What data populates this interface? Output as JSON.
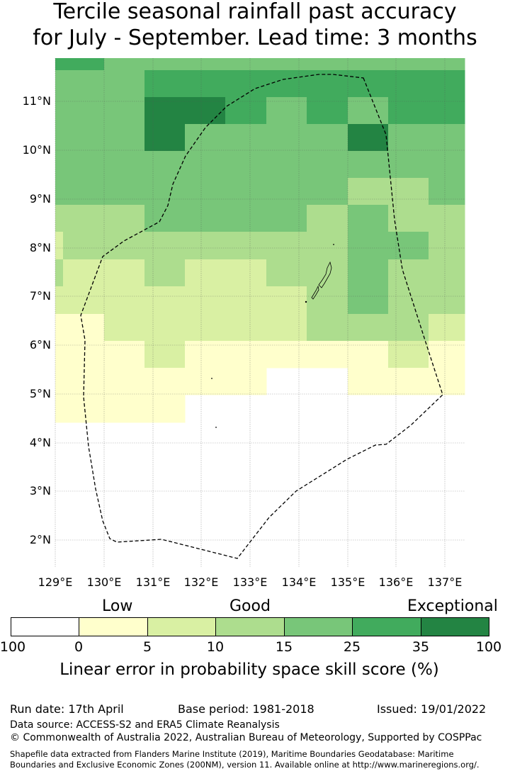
{
  "title_line1": "Tercile seasonal rainfall past accuracy",
  "title_line2": "for July - September. Lead time: 3 months",
  "lat_labels": [
    "11°N",
    "10°N",
    "9°N",
    "8°N",
    "7°N",
    "6°N",
    "5°N",
    "4°N",
    "3°N",
    "2°N"
  ],
  "lon_labels": [
    "129°E",
    "130°E",
    "131°E",
    "132°E",
    "133°E",
    "134°E",
    "135°E",
    "136°E",
    "137°E"
  ],
  "legend": {
    "category_labels": [
      "Low",
      "Good",
      "Exceptional"
    ],
    "tick_labels": [
      "100",
      "0",
      "5",
      "10",
      "15",
      "25",
      "35",
      "100"
    ],
    "colors": [
      "#ffffff",
      "#ffffcc",
      "#d9f0a3",
      "#addd8e",
      "#78c679",
      "#41ab5d",
      "#238443"
    ],
    "title": "Linear error in probability space skill score (%)"
  },
  "footer": {
    "run_date": "Run date: 17th April",
    "base_period": "Base period: 1981-2018",
    "issued": "Issued: 19/01/2022",
    "data_source": "Data source: ACCESS-S2 and ERA5 Climate Reanalysis",
    "copyright": "© Commonwealth of Australia 2022, Australian Bureau of Meteorology, Supported by COSPPac",
    "shapefile_line1": "Shapefile data extracted from Flanders Marine Institute (2019), Maritime Boundaries Geodatabase: Maritime",
    "shapefile_line2": "Boundaries and Exclusive Economic Zones (200NM), version 11. Available online at http://www.marineregions.org/."
  }
}
